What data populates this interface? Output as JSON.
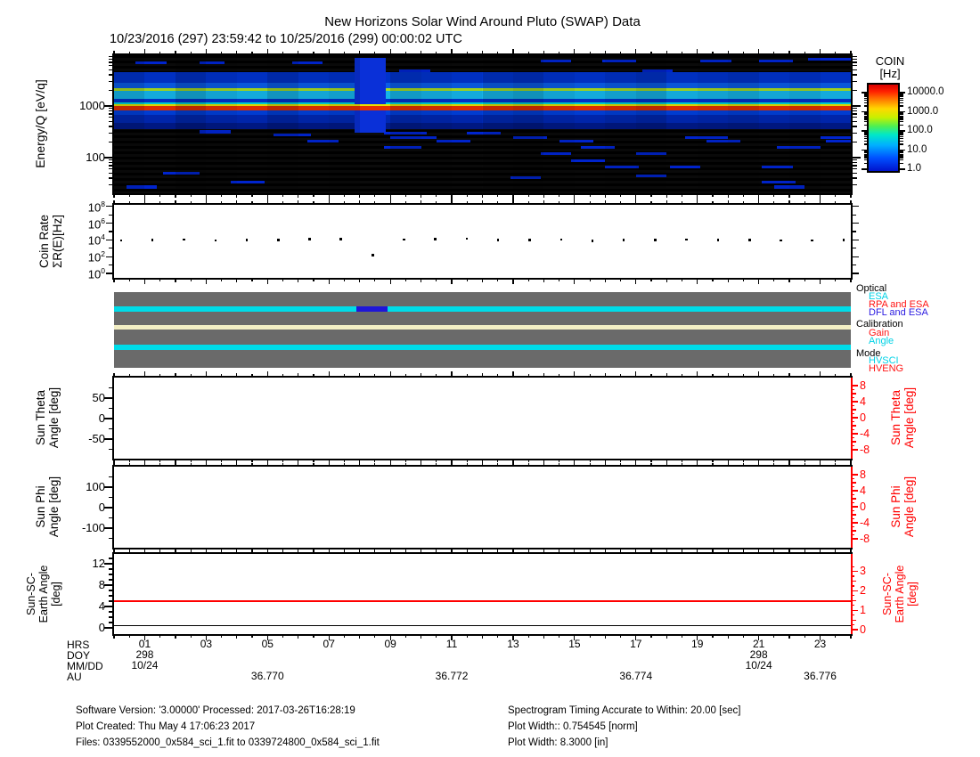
{
  "title": "New Horizons Solar Wind Around Pluto (SWAP) Data",
  "subtitle": "10/23/2016 (297) 23:59:42 to 10/25/2016 (299) 00:00:02 UTC",
  "colorbar": {
    "title1": "COIN",
    "title2": "[Hz]",
    "tick_labels": [
      "10000.0",
      "1000.0",
      "100.0",
      "10.0",
      "1.0"
    ]
  },
  "axes": {
    "energy": {
      "label": "Energy/Q [eV/q]",
      "tick_labels": [
        "1000",
        "100"
      ]
    },
    "coinrate": {
      "label1": "Coin Rate",
      "label2": "ΣR(E)[Hz]",
      "tick_base": "10",
      "tick_exponents": [
        "8",
        "6",
        "4",
        "2",
        "0"
      ]
    },
    "theta": {
      "label1": "Sun Theta",
      "label2": "Angle [deg]",
      "left_ticks": [
        "50",
        "0",
        "-50"
      ],
      "right_ticks": [
        "8",
        "4",
        "0",
        "-4",
        "-8"
      ],
      "right_label1": "Sun Theta",
      "right_label2": "Angle [deg]"
    },
    "phi": {
      "label1": "Sun Phi",
      "label2": "Angle [deg]",
      "left_ticks": [
        "100",
        "0",
        "-100"
      ],
      "right_ticks": [
        "8",
        "4",
        "0",
        "-4",
        "-8"
      ],
      "right_label1": "Sun Phi",
      "right_label2": "Angle [deg]"
    },
    "earth": {
      "label1": "Sun-SC-",
      "label2": "Earth Angle",
      "label3": "[deg]",
      "left_ticks": [
        "12",
        "8",
        "4",
        "0"
      ],
      "right_ticks": [
        "3",
        "2",
        "1",
        "0"
      ],
      "right_label1": "Sun-SC-",
      "right_label2": "Earth Angle",
      "right_label3": "[deg]"
    }
  },
  "status_legend": {
    "sections": [
      {
        "header": "Optical",
        "items": [
          {
            "label": "ESA",
            "color": "#00d2e6"
          },
          {
            "label": "RPA and ESA",
            "color": "#ff1414"
          },
          {
            "label": "DFL and ESA",
            "color": "#2a1ae0"
          }
        ]
      },
      {
        "header": "Calibration",
        "items": [
          {
            "label": "Gain",
            "color": "#ff1414"
          },
          {
            "label": "Angle",
            "color": "#00d2e6"
          }
        ]
      },
      {
        "header": "Mode",
        "items": [
          {
            "label": "HVSCI",
            "color": "#00d2e6"
          },
          {
            "label": "HVENG",
            "color": "#ff1414"
          }
        ]
      }
    ]
  },
  "xaxis": {
    "row_labels": [
      "HRS",
      "DOY",
      "MM/DD",
      "AU"
    ],
    "hour_labels": [
      {
        "hour": 1,
        "label": "01"
      },
      {
        "hour": 3,
        "label": "03"
      },
      {
        "hour": 5,
        "label": "05"
      },
      {
        "hour": 7,
        "label": "07"
      },
      {
        "hour": 9,
        "label": "09"
      },
      {
        "hour": 11,
        "label": "11"
      },
      {
        "hour": 13,
        "label": "13"
      },
      {
        "hour": 15,
        "label": "15"
      },
      {
        "hour": 17,
        "label": "17"
      },
      {
        "hour": 19,
        "label": "19"
      },
      {
        "hour": 21,
        "label": "21"
      },
      {
        "hour": 23,
        "label": "23"
      }
    ],
    "doy_labels": [
      {
        "hour": 1,
        "label": "298"
      },
      {
        "hour": 21,
        "label": "298"
      }
    ],
    "mmdd_labels": [
      {
        "hour": 1,
        "label": "10/24"
      },
      {
        "hour": 21,
        "label": "10/24"
      }
    ],
    "au_labels": [
      {
        "hour": 5,
        "label": "36.770"
      },
      {
        "hour": 11,
        "label": "36.772"
      },
      {
        "hour": 17,
        "label": "36.774"
      },
      {
        "hour": 23,
        "label": "36.776"
      }
    ]
  },
  "footer": {
    "left": [
      "Software Version:  '3.00000'  Processed: 2017-03-26T16:28:19",
      "Plot Created: Thu May  4 17:06:23 2017",
      "Files: 0339552000_0x584_sci_1.fit to 0339724800_0x584_sci_1.fit"
    ],
    "right": [
      "Spectrogram Timing Accurate to Within: 20.00 [sec]",
      "Plot Width:: 0.754545 [norm]",
      "Plot Width: 8.3000 [in]"
    ]
  },
  "colors": {
    "axis_red": "#ff0000",
    "status_gray": "#6a6a6a",
    "status_cyan": "#00dce8",
    "status_cream": "#f2eec4",
    "status_blue": "#1f16d8"
  },
  "chart_data": [
    {
      "type": "heatmap",
      "name": "energy-spectrogram",
      "ylabel": "Energy/Q [eV/q]",
      "y_log_range_evq": [
        20,
        9600
      ],
      "x_range_hours": [
        0,
        24
      ],
      "colorbar": {
        "label": "COIN [Hz]",
        "log_ticks": [
          1.0,
          10.0,
          100.0,
          1000.0,
          10000.0
        ]
      },
      "features": [
        {
          "name": "proton-beam",
          "energy_evq": 1000,
          "coin_hz": 8000,
          "extent_hours": [
            0,
            24
          ]
        },
        {
          "name": "alpha-beam",
          "energy_evq": 2100,
          "coin_hz": 300,
          "extent_hours": [
            0,
            24
          ]
        },
        {
          "name": "suprathermal-blue-bands",
          "energy_evq": [
            700,
            4500
          ],
          "coin_hz": [
            2,
            50
          ],
          "extent_hours": [
            0,
            24
          ]
        },
        {
          "name": "low-energy-sparse-counts",
          "energy_evq": [
            25,
            500
          ],
          "coin_hz": [
            1,
            3
          ]
        }
      ],
      "bands": [
        {
          "top": 0.125,
          "h": 0.075,
          "color": "#0033cc"
        },
        {
          "top": 0.2,
          "h": 0.038,
          "color": "#0a5ce6"
        },
        {
          "top": 0.238,
          "h": 0.02,
          "color": "#a8dc20"
        },
        {
          "top": 0.258,
          "h": 0.055,
          "color": "#15b4e8"
        },
        {
          "top": 0.313,
          "h": 0.031,
          "color": "#0033cc"
        },
        {
          "top": 0.344,
          "h": 0.012,
          "color": "#00d8d8"
        },
        {
          "top": 0.356,
          "h": 0.01,
          "color": "#e8e000"
        },
        {
          "top": 0.366,
          "h": 0.034,
          "color": "#e63000"
        },
        {
          "top": 0.4,
          "h": 0.033,
          "color": "#0040dd"
        },
        {
          "top": 0.433,
          "h": 0.06,
          "color": "#0028b4"
        },
        {
          "top": 0.493,
          "h": 0.042,
          "color": "#001a8a"
        }
      ],
      "segments": [
        [
          0.045,
          0.7,
          1.7
        ],
        [
          0.045,
          2.8,
          3.6
        ],
        [
          0.045,
          5.8,
          6.8
        ],
        [
          0.03,
          13.9,
          14.9
        ],
        [
          0.03,
          15.9,
          17.0
        ],
        [
          0.03,
          19.1,
          20.1
        ],
        [
          0.03,
          21.0,
          22.1
        ],
        [
          0.02,
          22.6,
          24.0
        ],
        [
          0.1,
          9.3,
          10.3
        ],
        [
          0.1,
          17.2,
          18.2
        ],
        [
          0.545,
          2.8,
          3.8
        ],
        [
          0.555,
          8.8,
          10.2
        ],
        [
          0.555,
          11.5,
          12.6
        ],
        [
          0.57,
          5.2,
          6.4
        ],
        [
          0.585,
          9.0,
          10.5
        ],
        [
          0.585,
          13.0,
          14.1
        ],
        [
          0.585,
          18.6,
          20.0
        ],
        [
          0.585,
          23.0,
          24.0
        ],
        [
          0.615,
          6.3,
          7.3
        ],
        [
          0.615,
          10.5,
          11.6
        ],
        [
          0.615,
          14.5,
          15.6
        ],
        [
          0.615,
          19.3,
          20.4
        ],
        [
          0.615,
          23.2,
          24.0
        ],
        [
          0.655,
          8.8,
          10.0
        ],
        [
          0.655,
          15.2,
          16.3
        ],
        [
          0.655,
          21.6,
          23.0
        ],
        [
          0.7,
          13.9,
          14.9
        ],
        [
          0.7,
          17.0,
          18.0
        ],
        [
          0.755,
          14.9,
          16.0
        ],
        [
          0.8,
          16.0,
          17.1
        ],
        [
          0.8,
          18.1,
          19.1
        ],
        [
          0.8,
          21.1,
          22.1
        ],
        [
          0.845,
          1.6,
          2.8
        ],
        [
          0.865,
          17.0,
          18.0
        ],
        [
          0.875,
          12.9,
          13.9
        ],
        [
          0.91,
          3.8,
          4.9
        ],
        [
          0.91,
          21.1,
          22.2
        ],
        [
          0.945,
          0.4,
          1.4
        ],
        [
          0.945,
          21.5,
          22.5
        ]
      ],
      "gap_column": {
        "hours": [
          7.85,
          8.85
        ],
        "rects": [
          [
            0.02,
            0.355
          ],
          [
            0.4,
            0.56
          ]
        ],
        "color": "#0a30d8"
      },
      "column_shade": [
        0.15,
        0.05,
        0.2,
        0.1,
        0.05,
        0.18,
        0.08,
        0.12,
        0.0,
        0.15,
        0.1,
        0.05,
        0.15,
        0.2,
        0.1,
        0.05,
        0.12,
        0.18,
        0.06,
        0.1,
        0.15,
        0.08,
        0.12,
        0.05
      ]
    },
    {
      "type": "scatter",
      "name": "coin-rate",
      "ylabel": "Coin Rate ΣR(E)[Hz]",
      "ylog_range": [
        1,
        100000000
      ],
      "x_hours": [
        0.23,
        1.25,
        2.28,
        3.3,
        4.32,
        5.35,
        6.37,
        7.39,
        8.42,
        9.44,
        10.46,
        11.49,
        12.51,
        13.53,
        14.56,
        15.58,
        16.6,
        17.63,
        18.65,
        19.67,
        20.7,
        21.72,
        22.74,
        23.77
      ],
      "y_hz": [
        9000,
        10500,
        11000,
        8500,
        10000,
        10500,
        12500,
        12000,
        150,
        11500,
        12500,
        14000,
        10500,
        10000,
        11500,
        7500,
        9500,
        10500,
        11500,
        10500,
        10000,
        8500,
        9000,
        9500
      ]
    },
    {
      "type": "timeline",
      "name": "instrument-status",
      "rows": [
        {
          "name": "Optical",
          "state": "ESA",
          "exception": {
            "state": "DFL and ESA",
            "hours": [
              7.9,
              8.9
            ]
          }
        },
        {
          "name": "Calibration",
          "state": "none"
        },
        {
          "name": "Mode",
          "state": "HVSCI"
        }
      ]
    },
    {
      "type": "line",
      "name": "sun-theta-angle",
      "ylabel": "Sun Theta Angle [deg]",
      "ylim": [
        -100,
        100
      ],
      "right_ylim": [
        -9,
        9
      ],
      "series": []
    },
    {
      "type": "line",
      "name": "sun-phi-angle",
      "ylabel": "Sun Phi Angle [deg]",
      "ylim": [
        -200,
        200
      ],
      "right_ylim": [
        -9,
        9
      ],
      "series": []
    },
    {
      "type": "line",
      "name": "sun-sc-earth-angle",
      "ylabel": "Sun-SC-Earth Angle [deg]",
      "ylim": [
        -1.2,
        13.8
      ],
      "right_ylim": [
        0,
        3.4
      ],
      "series": [
        {
          "name": "left-axis-line",
          "color": "#000000",
          "value_deg": 0.42
        },
        {
          "name": "right-axis-line",
          "color": "#ff0000",
          "value_deg": 1.45
        }
      ]
    }
  ]
}
